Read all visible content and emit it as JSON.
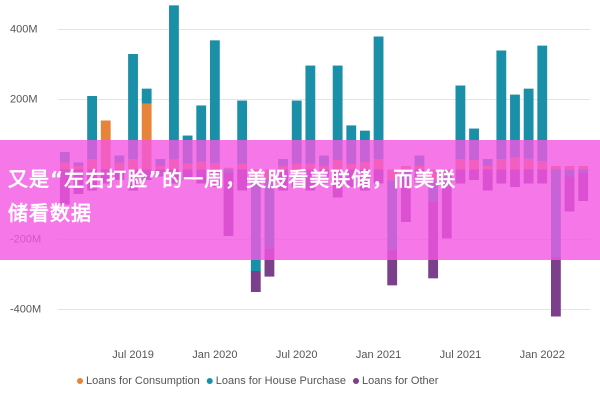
{
  "chart_data": {
    "type": "bar",
    "stacked": true,
    "categories": [
      null,
      null,
      null,
      null,
      null,
      "Jul 2019",
      null,
      null,
      null,
      null,
      null,
      "Jan 2020",
      null,
      null,
      null,
      null,
      null,
      "Jul 2020",
      null,
      null,
      null,
      null,
      null,
      "Jan 2021",
      null,
      null,
      null,
      null,
      null,
      "Jul 2021",
      null,
      null,
      null,
      null,
      null,
      "Jan 2022",
      null,
      null,
      null
    ],
    "series": [
      {
        "name": "Loans for Consumption",
        "color": "#e8833a",
        "values": [
          20,
          10,
          30,
          140,
          20,
          30,
          188,
          10,
          29,
          17,
          23,
          19,
          5,
          17,
          -30,
          -26,
          10,
          17,
          17,
          10,
          27,
          16,
          21,
          30,
          -31,
          10,
          10,
          -31,
          -17,
          30,
          27,
          10,
          30,
          34,
          31,
          24,
          10,
          10,
          10
        ]
      },
      {
        "name": "Loans for House Purchase",
        "color": "#1a8fa8",
        "values": [
          30,
          10,
          180,
          0,
          20,
          300,
          43,
          20,
          440,
          80,
          160,
          350,
          -10,
          180,
          -260,
          -200,
          20,
          180,
          280,
          30,
          270,
          110,
          90,
          350,
          -200,
          -30,
          30,
          -60,
          -30,
          210,
          90,
          20,
          310,
          180,
          200,
          330,
          -250,
          -20,
          -10
        ]
      },
      {
        "name": "Loans for Other",
        "color": "#7b3f8c",
        "values": [
          -100,
          -70,
          -60,
          -40,
          -30,
          -60,
          -30,
          -20,
          -40,
          -30,
          -40,
          -50,
          -180,
          -60,
          -60,
          -80,
          -60,
          -50,
          -60,
          -40,
          -80,
          -50,
          -60,
          -40,
          -100,
          -120,
          -40,
          -220,
          -150,
          -40,
          -30,
          -60,
          -40,
          -50,
          -40,
          -40,
          -170,
          -100,
          -80
        ]
      }
    ],
    "ylim": [
      -450,
      470
    ],
    "yticks": [
      {
        "value": -400,
        "label": "-400M"
      },
      {
        "value": -200,
        "label": "-200M"
      },
      {
        "value": 200,
        "label": "200M"
      },
      {
        "value": 400,
        "label": "400M"
      }
    ],
    "grid": true
  },
  "banner": {
    "lines": [
      "又是“左右打脸”的一周，美股看美联储，而美联",
      "储看数据"
    ]
  }
}
